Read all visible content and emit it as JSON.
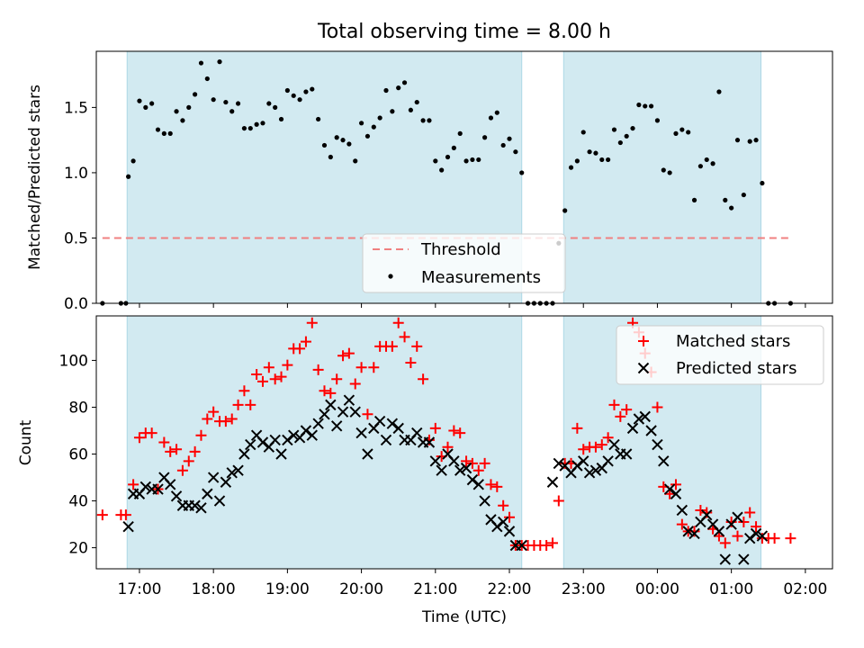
{
  "figure": {
    "title": "Total observing time = 8.00 h"
  },
  "colors": {
    "shade": "#add8e6",
    "threshold": "#f08080",
    "measurements": "#000000",
    "matched": "#ff0000",
    "predicted": "#000000"
  },
  "chart_data": [
    {
      "type": "scatter",
      "title": "Total observing time = 8.00 h",
      "xlabel": "",
      "ylabel": "Matched/Predicted stars",
      "xlim": [
        "16:25",
        "02:22"
      ],
      "ylim": [
        0,
        1.93
      ],
      "yticks": [
        0.0,
        0.5,
        1.0,
        1.5
      ],
      "yticklabels": [
        "0.0",
        "0.5",
        "1.0",
        "1.5"
      ],
      "grid": false,
      "legend_placement": "lower center",
      "shaded_intervals": [
        [
          "16:50",
          "22:10"
        ],
        [
          "22:44",
          "01:24"
        ]
      ],
      "threshold": {
        "name": "Threshold",
        "value": 0.5,
        "x_range": [
          "16:30",
          "01:48"
        ],
        "style": "dashed"
      },
      "series": [
        {
          "name": "Measurements",
          "x": [
            "16:30",
            "16:45",
            "16:49",
            "16:51",
            "16:55",
            "17:00",
            "17:05",
            "17:10",
            "17:15",
            "17:20",
            "17:25",
            "17:30",
            "17:35",
            "17:40",
            "17:45",
            "17:50",
            "17:55",
            "18:00",
            "18:05",
            "18:10",
            "18:15",
            "18:20",
            "18:25",
            "18:30",
            "18:35",
            "18:40",
            "18:45",
            "18:50",
            "18:55",
            "19:00",
            "19:05",
            "19:10",
            "19:15",
            "19:20",
            "19:25",
            "19:30",
            "19:35",
            "19:40",
            "19:45",
            "19:50",
            "19:55",
            "20:00",
            "20:05",
            "20:10",
            "20:15",
            "20:20",
            "20:25",
            "20:30",
            "20:35",
            "20:40",
            "20:45",
            "20:50",
            "20:55",
            "21:00",
            "21:05",
            "21:10",
            "21:15",
            "21:20",
            "21:25",
            "21:30",
            "21:35",
            "21:40",
            "21:45",
            "21:50",
            "21:55",
            "22:00",
            "22:05",
            "22:10",
            "22:15",
            "22:20",
            "22:25",
            "22:30",
            "22:35",
            "22:40",
            "22:45",
            "22:50",
            "22:55",
            "23:00",
            "23:05",
            "23:10",
            "23:15",
            "23:20",
            "23:25",
            "23:30",
            "23:35",
            "23:40",
            "23:45",
            "23:50",
            "23:55",
            "00:00",
            "00:05",
            "00:10",
            "00:15",
            "00:20",
            "00:25",
            "00:30",
            "00:35",
            "00:40",
            "00:45",
            "00:50",
            "00:55",
            "01:00",
            "01:05",
            "01:10",
            "01:15",
            "01:20",
            "01:25",
            "01:30",
            "01:35",
            "01:48"
          ],
          "y": [
            0.0,
            0.0,
            0.0,
            0.97,
            1.09,
            1.55,
            1.5,
            1.53,
            1.33,
            1.3,
            1.3,
            1.47,
            1.4,
            1.5,
            1.6,
            1.84,
            1.72,
            1.56,
            1.85,
            1.54,
            1.47,
            1.53,
            1.34,
            1.34,
            1.37,
            1.38,
            1.53,
            1.5,
            1.41,
            1.63,
            1.59,
            1.56,
            1.62,
            1.64,
            1.41,
            1.21,
            1.12,
            1.27,
            1.25,
            1.22,
            1.09,
            1.38,
            1.28,
            1.35,
            1.42,
            1.63,
            1.47,
            1.65,
            1.69,
            1.48,
            1.54,
            1.4,
            1.4,
            1.09,
            1.02,
            1.12,
            1.19,
            1.3,
            1.09,
            1.1,
            1.1,
            1.27,
            1.42,
            1.46,
            1.21,
            1.26,
            1.16,
            1.0,
            0.0,
            0.0,
            0.0,
            0.0,
            0.0,
            0.46,
            0.71,
            1.04,
            1.09,
            1.31,
            1.16,
            1.15,
            1.1,
            1.1,
            1.33,
            1.23,
            1.28,
            1.34,
            1.52,
            1.51,
            1.51,
            1.4,
            1.02,
            1.0,
            1.3,
            1.33,
            1.31,
            0.79,
            1.05,
            1.1,
            1.07,
            1.62,
            0.79,
            0.73,
            1.25,
            0.83,
            1.24,
            1.25,
            0.92,
            0.0,
            0.0,
            0.0
          ]
        }
      ]
    },
    {
      "type": "scatter",
      "title": "",
      "xlabel": "Time (UTC)",
      "ylabel": "Count",
      "xlim": [
        "16:25",
        "02:22"
      ],
      "ylim": [
        11,
        119
      ],
      "yticks": [
        20,
        40,
        60,
        80,
        100
      ],
      "yticklabels": [
        "20",
        "40",
        "60",
        "80",
        "100"
      ],
      "xticks": [
        "17:00",
        "18:00",
        "19:00",
        "20:00",
        "21:00",
        "22:00",
        "23:00",
        "00:00",
        "01:00",
        "02:00"
      ],
      "grid": false,
      "legend_placement": "upper right",
      "shaded_intervals": [
        [
          "16:50",
          "22:10"
        ],
        [
          "22:44",
          "01:24"
        ]
      ],
      "series": [
        {
          "name": "Matched stars",
          "marker": "+",
          "x": [
            "16:30",
            "16:45",
            "16:49",
            "16:55",
            "17:00",
            "17:05",
            "17:10",
            "17:15",
            "17:20",
            "17:25",
            "17:30",
            "17:35",
            "17:40",
            "17:45",
            "17:50",
            "17:55",
            "18:00",
            "18:05",
            "18:10",
            "18:15",
            "18:20",
            "18:25",
            "18:30",
            "18:35",
            "18:40",
            "18:45",
            "18:50",
            "18:55",
            "19:00",
            "19:05",
            "19:10",
            "19:15",
            "19:20",
            "19:25",
            "19:30",
            "19:35",
            "19:40",
            "19:45",
            "19:50",
            "19:55",
            "20:00",
            "20:05",
            "20:10",
            "20:15",
            "20:20",
            "20:25",
            "20:30",
            "20:35",
            "20:40",
            "20:45",
            "20:50",
            "20:55",
            "21:00",
            "21:05",
            "21:10",
            "21:15",
            "21:20",
            "21:25",
            "21:30",
            "21:35",
            "21:40",
            "21:45",
            "21:50",
            "21:55",
            "22:00",
            "22:05",
            "22:10",
            "22:15",
            "22:20",
            "22:25",
            "22:30",
            "22:35",
            "22:40",
            "22:45",
            "22:50",
            "22:55",
            "23:00",
            "23:05",
            "23:10",
            "23:15",
            "23:20",
            "23:25",
            "23:30",
            "23:35",
            "23:40",
            "23:45",
            "23:50",
            "23:55",
            "00:00",
            "00:05",
            "00:10",
            "00:15",
            "00:20",
            "00:25",
            "00:30",
            "00:35",
            "00:40",
            "00:45",
            "00:50",
            "00:55",
            "01:00",
            "01:05",
            "01:10",
            "01:15",
            "01:20",
            "01:25",
            "01:30",
            "01:35",
            "01:48"
          ],
          "y": [
            34,
            34,
            34,
            47,
            67,
            69,
            69,
            45,
            65,
            61,
            62,
            53,
            57,
            61,
            68,
            75,
            78,
            74,
            74,
            75,
            81,
            87,
            81,
            94,
            91,
            97,
            92,
            93,
            98,
            105,
            105,
            108,
            116,
            96,
            87,
            86,
            92,
            102,
            103,
            90,
            97,
            77,
            97,
            106,
            106,
            106,
            116,
            110,
            99,
            106,
            92,
            66,
            71,
            59,
            63,
            70,
            69,
            57,
            56,
            53,
            56,
            47,
            46,
            38,
            33,
            21,
            21,
            21,
            21,
            21,
            21,
            22,
            40,
            56,
            56,
            71,
            62,
            63,
            63,
            64,
            67,
            81,
            76,
            79,
            116,
            112,
            103,
            95,
            80,
            46,
            43,
            47,
            30,
            27,
            27,
            36,
            35,
            28,
            25,
            22,
            31,
            25,
            31,
            35,
            29,
            24,
            24,
            24,
            24
          ]
        },
        {
          "name": "Predicted stars",
          "marker": "x",
          "x": [
            "16:51",
            "16:55",
            "17:00",
            "17:05",
            "17:10",
            "17:15",
            "17:20",
            "17:25",
            "17:30",
            "17:35",
            "17:40",
            "17:45",
            "17:50",
            "17:55",
            "18:00",
            "18:05",
            "18:10",
            "18:15",
            "18:20",
            "18:25",
            "18:30",
            "18:35",
            "18:40",
            "18:45",
            "18:50",
            "18:55",
            "19:00",
            "19:05",
            "19:10",
            "19:15",
            "19:20",
            "19:25",
            "19:30",
            "19:35",
            "19:40",
            "19:45",
            "19:50",
            "19:55",
            "20:00",
            "20:05",
            "20:10",
            "20:15",
            "20:20",
            "20:25",
            "20:30",
            "20:35",
            "20:40",
            "20:45",
            "20:50",
            "20:55",
            "21:00",
            "21:05",
            "21:10",
            "21:15",
            "21:20",
            "21:25",
            "21:30",
            "21:35",
            "21:40",
            "21:45",
            "21:50",
            "21:55",
            "22:00",
            "22:05",
            "22:10",
            "22:35",
            "22:40",
            "22:45",
            "22:50",
            "22:55",
            "23:00",
            "23:05",
            "23:10",
            "23:15",
            "23:20",
            "23:25",
            "23:30",
            "23:35",
            "23:40",
            "23:45",
            "23:50",
            "23:55",
            "00:00",
            "00:05",
            "00:10",
            "00:15",
            "00:20",
            "00:25",
            "00:30",
            "00:35",
            "00:40",
            "00:45",
            "00:50",
            "00:55",
            "01:00",
            "01:05",
            "01:10",
            "01:15",
            "01:20",
            "01:25"
          ],
          "y": [
            29,
            43,
            43,
            46,
            45,
            45,
            50,
            47,
            42,
            38,
            38,
            38,
            37,
            43,
            50,
            40,
            48,
            52,
            53,
            60,
            64,
            68,
            65,
            63,
            66,
            60,
            66,
            68,
            67,
            70,
            68,
            73,
            77,
            81,
            72,
            78,
            83,
            78,
            69,
            60,
            71,
            74,
            66,
            73,
            71,
            66,
            66,
            69,
            65,
            65,
            57,
            53,
            60,
            57,
            53,
            54,
            49,
            47,
            40,
            32,
            29,
            31,
            27,
            21,
            21,
            48,
            56,
            55,
            52,
            55,
            57,
            52,
            53,
            54,
            57,
            64,
            60,
            60,
            71,
            75,
            76,
            70,
            64,
            57,
            45,
            43,
            36,
            27,
            26,
            31,
            34,
            30,
            27,
            15,
            30,
            33,
            15,
            24,
            26,
            25
          ]
        }
      ]
    }
  ]
}
